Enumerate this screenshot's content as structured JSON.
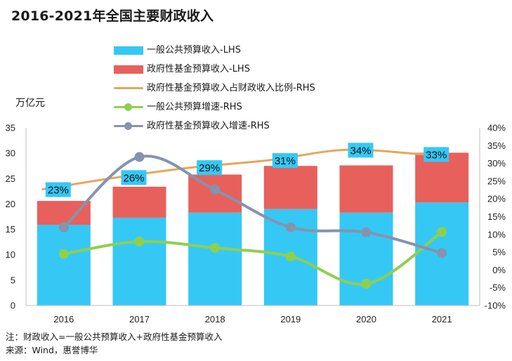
{
  "title": "2016-2021年全国主要财政收入",
  "unit_label": "万亿元",
  "footnotes": {
    "note": "注：财政收入=一般公共预算收入+政府性基金预算收入",
    "source": "来源：Wind，惠誉博华"
  },
  "legend": [
    {
      "label": "一般公共预算收入-LHS",
      "kind": "bar",
      "color": "#35c8f5"
    },
    {
      "label": "政府性基金预算收入-LHS",
      "kind": "bar",
      "color": "#e8605c"
    },
    {
      "label": "政府性基金预算收入占财政收入比例-RHS",
      "kind": "line",
      "color": "#e8a55a"
    },
    {
      "label": "一般公共预算增速-RHS",
      "kind": "line-marker",
      "color": "#8fcf4f"
    },
    {
      "label": "政府性基金预算收入增速-RHS",
      "kind": "line-marker",
      "color": "#8494ad"
    }
  ],
  "chart_data": {
    "type": "bar",
    "title": "2016-2021年全国主要财政收入",
    "categories": [
      "2016",
      "2017",
      "2018",
      "2019",
      "2020",
      "2021"
    ],
    "left_axis": {
      "label": "万亿元",
      "min": 0,
      "max": 35,
      "ticks": [
        0,
        5,
        10,
        15,
        20,
        25,
        30,
        35
      ]
    },
    "right_axis": {
      "min": -10,
      "max": 40,
      "ticks": [
        "-10%",
        "-5%",
        "0%",
        "5%",
        "10%",
        "15%",
        "20%",
        "25%",
        "30%",
        "35%",
        "40%"
      ]
    },
    "series": [
      {
        "name": "一般公共预算收入-LHS",
        "type": "bar-stacked",
        "axis": "left",
        "color": "#35c8f5",
        "values": [
          15.9,
          17.3,
          18.3,
          19.0,
          18.3,
          20.3
        ]
      },
      {
        "name": "政府性基金预算收入-LHS",
        "type": "bar-stacked",
        "axis": "left",
        "color": "#e8605c",
        "values": [
          4.7,
          6.1,
          7.5,
          8.5,
          9.3,
          9.8
        ]
      },
      {
        "name": "政府性基金预算收入占财政收入比例-RHS",
        "type": "line",
        "axis": "right",
        "color": "#e8a55a",
        "values": [
          22.7,
          26.1,
          28.9,
          30.9,
          33.8,
          32.6
        ],
        "data_labels": [
          "23%",
          "26%",
          "29%",
          "31%",
          "34%",
          "33%"
        ]
      },
      {
        "name": "一般公共预算增速-RHS",
        "type": "line",
        "axis": "right",
        "color": "#8fcf4f",
        "values": [
          4.5,
          8.0,
          6.2,
          3.8,
          -3.9,
          10.7
        ]
      },
      {
        "name": "政府性基金预算收入增速-RHS",
        "type": "line",
        "axis": "right",
        "color": "#8494ad",
        "values": [
          12.0,
          31.8,
          22.6,
          12.0,
          10.6,
          4.8
        ]
      }
    ],
    "grid": false,
    "legend_position": "top"
  }
}
